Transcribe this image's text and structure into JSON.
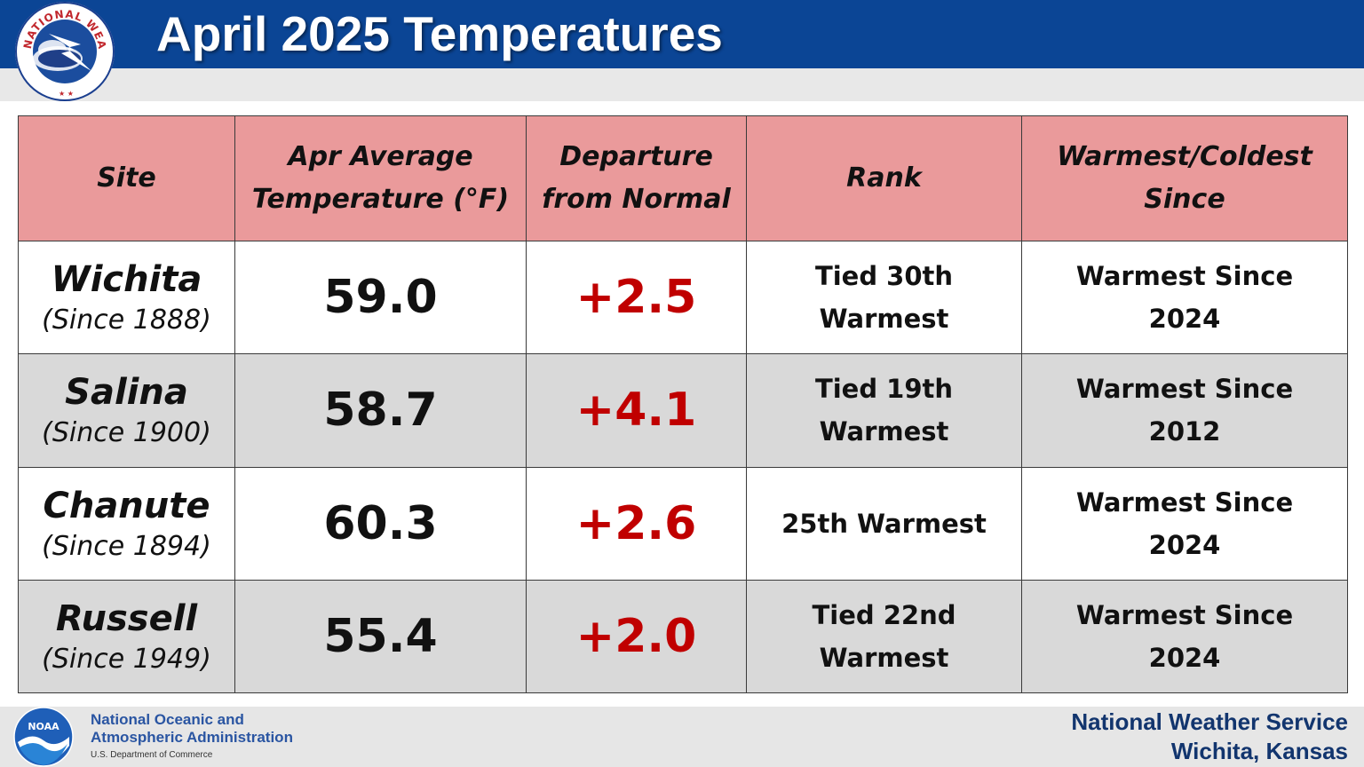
{
  "header": {
    "title": "April 2025 Temperatures",
    "logo_text": "NATIONAL WEATHER SERVICE"
  },
  "table": {
    "columns": [
      {
        "line1": "Site",
        "line2": ""
      },
      {
        "line1": "Apr Average",
        "line2": "Temperature (°F)"
      },
      {
        "line1": "Departure",
        "line2": "from Normal"
      },
      {
        "line1": "Rank",
        "line2": ""
      },
      {
        "line1": "Warmest/Coldest",
        "line2": "Since"
      }
    ],
    "rows": [
      {
        "site": "Wichita",
        "since": "(Since 1888)",
        "avg": "59.0",
        "departure": "+2.5",
        "rank_line1": "Tied 30th",
        "rank_line2": "Warmest",
        "since_line1": "Warmest Since",
        "since_line2": "2024"
      },
      {
        "site": "Salina",
        "since": "(Since 1900)",
        "avg": "58.7",
        "departure": "+4.1",
        "rank_line1": "Tied 19th",
        "rank_line2": "Warmest",
        "since_line1": "Warmest Since",
        "since_line2": "2012"
      },
      {
        "site": "Chanute",
        "since": "(Since 1894)",
        "avg": "60.3",
        "departure": "+2.6",
        "rank_line1": "25th Warmest",
        "rank_line2": "",
        "since_line1": "Warmest Since",
        "since_line2": "2024"
      },
      {
        "site": "Russell",
        "since": "(Since 1949)",
        "avg": "55.4",
        "departure": "+2.0",
        "rank_line1": "Tied 22nd",
        "rank_line2": "Warmest",
        "since_line1": "Warmest Since",
        "since_line2": "2024"
      }
    ]
  },
  "footer": {
    "noaa_line1": "National Oceanic and",
    "noaa_line2": "Atmospheric Administration",
    "noaa_dept": "U.S. Department of Commerce",
    "noaa_logo_text": "NOAA",
    "office_line1": "National Weather Service",
    "office_line2": "Wichita, Kansas"
  },
  "colors": {
    "title_bar": "#0b4595",
    "header_row": "#ea9a9b",
    "departure_text": "#c00000",
    "alt_row": "#d9d9d9"
  }
}
